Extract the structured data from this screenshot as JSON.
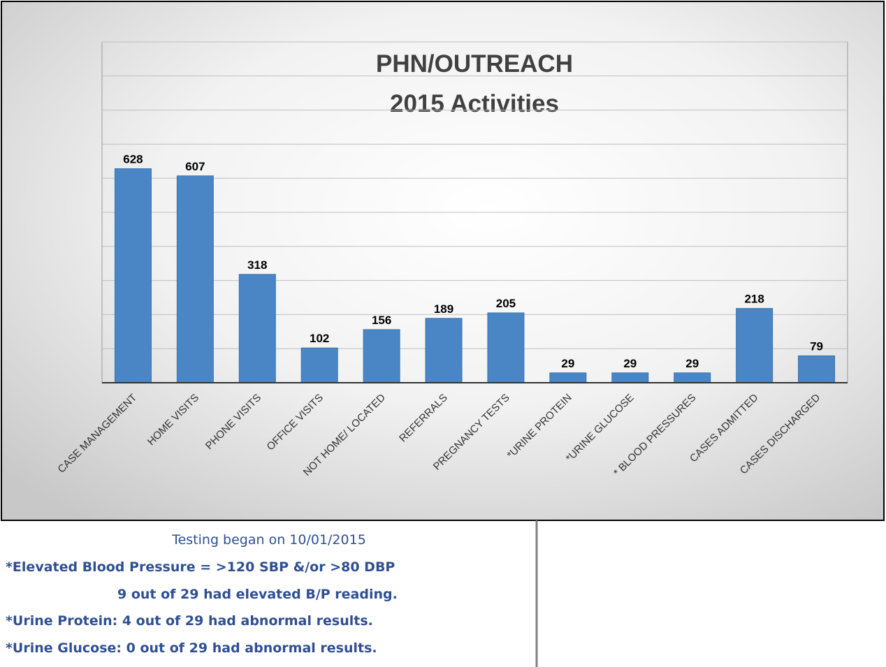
{
  "chart_data": {
    "type": "bar",
    "title": "PHN/OUTREACH",
    "subtitle": "2015 Activities",
    "categories": [
      "CASE MANAGEMENT",
      "HOME VISITS",
      "PHONE VISITS",
      "OFFICE VISITS",
      "NOT HOME/ LOCATED",
      "REFERRALS",
      "PREGNANCY TESTS",
      "*URINE PROTEIN",
      "*URINE GLUCOSE",
      "* BLOOD PRESSURES",
      "CASES ADMITTED",
      "CASES DISCHARGED"
    ],
    "values": [
      628,
      607,
      318,
      102,
      156,
      189,
      205,
      29,
      29,
      29,
      218,
      79
    ],
    "color": "#4a86c5",
    "ylim": [
      0,
      1000
    ],
    "yticks": [
      0,
      100,
      200,
      300,
      400,
      500,
      600,
      700,
      800,
      900,
      1000
    ],
    "grid": true
  },
  "notes": [
    "Testing began on 10/01/2015",
    "*Elevated Blood Pressure = >120 SBP &/or >80 DBP",
    "9 out of 29 had elevated B/P reading.",
    "*Urine Protein: 4 out of 29 had abnormal results.",
    "*Urine Glucose: 0 out of 29 had abnormal results."
  ]
}
